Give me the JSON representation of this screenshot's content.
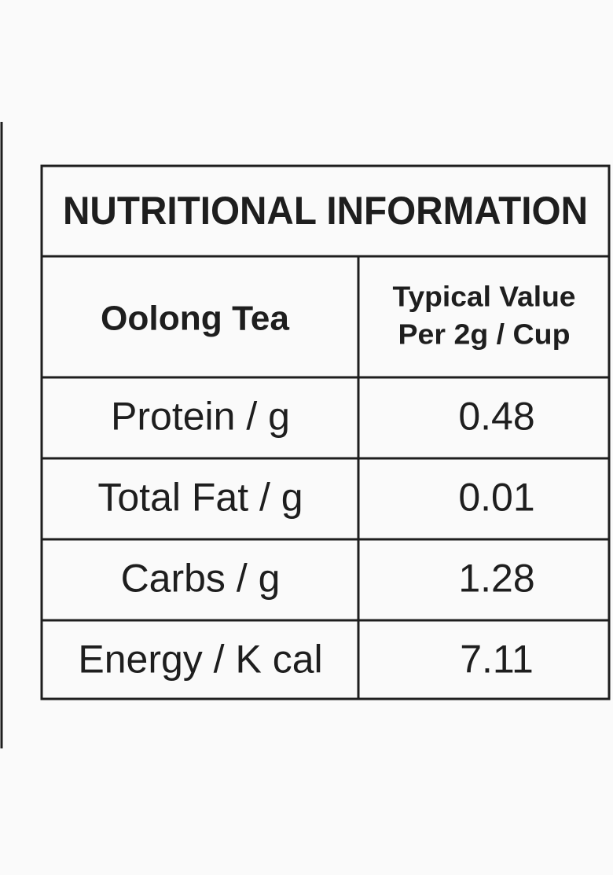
{
  "table": {
    "title": "NUTRITIONAL INFORMATION",
    "header": [
      "Oolong Tea",
      [
        "Typical Value",
        "Per 2g / Cup"
      ]
    ],
    "rows": [
      [
        "Protein / g",
        "0.48"
      ],
      [
        "Total Fat / g",
        "0.01"
      ],
      [
        "Carbs / g",
        "1.28"
      ],
      [
        "Energy / K cal",
        "7.11"
      ]
    ]
  }
}
